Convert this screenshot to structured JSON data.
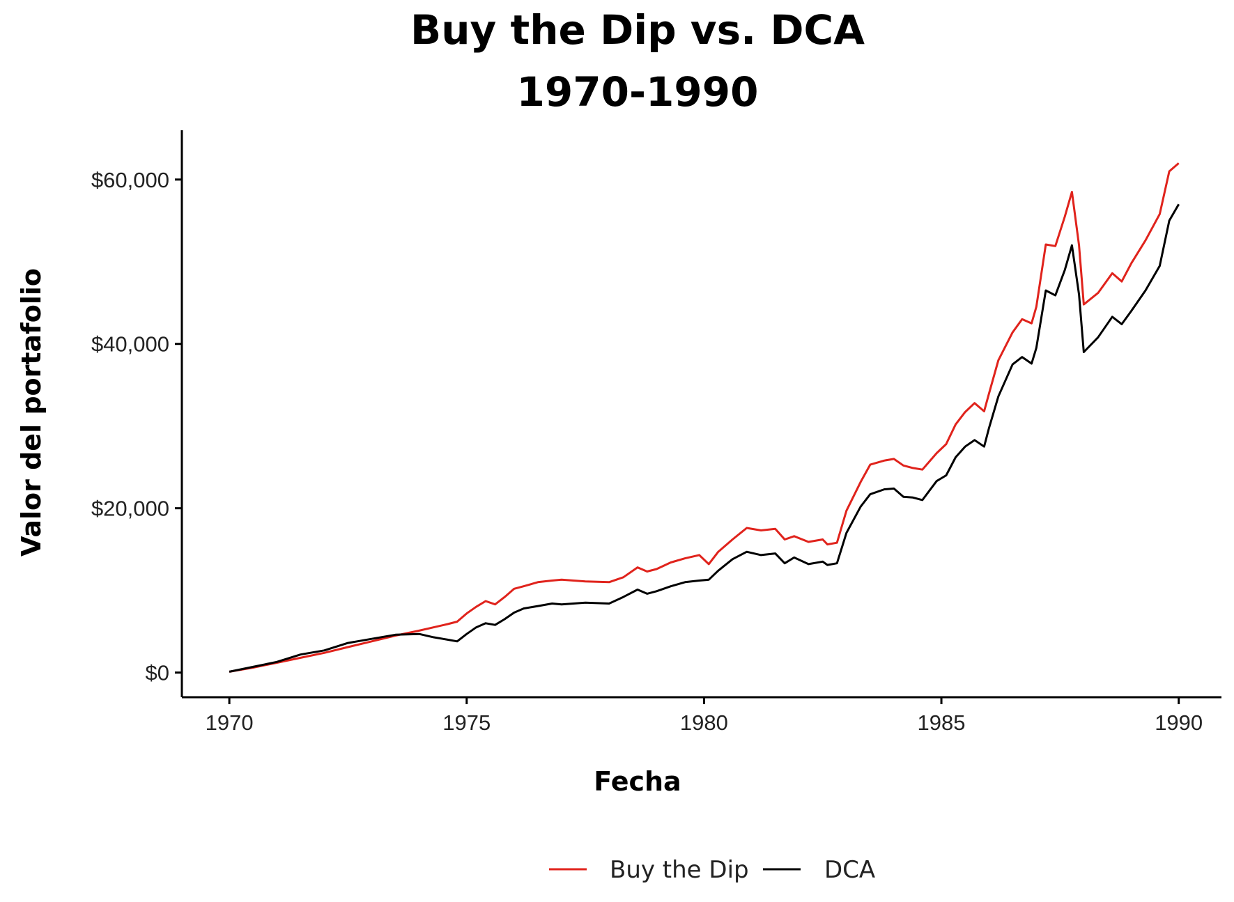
{
  "chart_data": {
    "type": "line",
    "title": "Buy the Dip vs. DCA",
    "subtitle": "1970-1990",
    "xlabel": "Fecha",
    "ylabel": "Valor del portafolio",
    "xlim": [
      1969.0,
      1990.9
    ],
    "ylim": [
      -3000,
      66000
    ],
    "x_ticks": [
      1970,
      1975,
      1980,
      1985,
      1990
    ],
    "x_tick_labels": [
      "1970",
      "1975",
      "1980",
      "1985",
      "1990"
    ],
    "y_ticks": [
      0,
      20000,
      40000,
      60000
    ],
    "y_tick_labels": [
      "$0",
      "$20,000",
      "$40,000",
      "$60,000"
    ],
    "grid": false,
    "legend_position": "bottom",
    "series": [
      {
        "name": "Buy the Dip",
        "color": "#e0231c",
        "x": [
          1970.0,
          1970.5,
          1971.0,
          1971.5,
          1972.0,
          1972.5,
          1973.0,
          1973.5,
          1974.0,
          1974.3,
          1974.6,
          1974.8,
          1975.0,
          1975.2,
          1975.4,
          1975.6,
          1975.8,
          1976.0,
          1976.2,
          1976.5,
          1976.8,
          1977.0,
          1977.5,
          1978.0,
          1978.3,
          1978.6,
          1978.8,
          1979.0,
          1979.3,
          1979.6,
          1979.9,
          1980.1,
          1980.3,
          1980.6,
          1980.9,
          1981.2,
          1981.5,
          1981.7,
          1981.9,
          1982.2,
          1982.5,
          1982.6,
          1982.8,
          1983.0,
          1983.3,
          1983.5,
          1983.8,
          1984.0,
          1984.2,
          1984.4,
          1984.6,
          1984.9,
          1985.1,
          1985.3,
          1985.5,
          1985.7,
          1985.9,
          1986.0,
          1986.2,
          1986.5,
          1986.7,
          1986.9,
          1987.0,
          1987.2,
          1987.4,
          1987.6,
          1987.75,
          1987.9,
          1988.0,
          1988.3,
          1988.6,
          1988.8,
          1989.0,
          1989.3,
          1989.6,
          1989.8,
          1990.0
        ],
        "y": [
          100,
          600,
          1200,
          1800,
          2400,
          3100,
          3800,
          4500,
          5100,
          5500,
          5900,
          6200,
          7200,
          8000,
          8700,
          8300,
          9200,
          10200,
          10500,
          11000,
          11200,
          11300,
          11100,
          11000,
          11600,
          12800,
          12300,
          12600,
          13400,
          13900,
          14300,
          13200,
          14700,
          16200,
          17600,
          17300,
          17500,
          16200,
          16600,
          15900,
          16200,
          15600,
          15800,
          19700,
          23200,
          25300,
          25800,
          26000,
          25200,
          24900,
          24700,
          26700,
          27800,
          30200,
          31700,
          32800,
          31800,
          33900,
          38000,
          41400,
          43000,
          42500,
          44500,
          52100,
          51900,
          55500,
          58500,
          52000,
          44800,
          46200,
          48600,
          47600,
          49800,
          52600,
          55800,
          61000,
          62000
        ]
      },
      {
        "name": "DCA",
        "color": "#000000",
        "x": [
          1970.0,
          1970.5,
          1971.0,
          1971.5,
          1972.0,
          1972.5,
          1973.0,
          1973.5,
          1974.0,
          1974.3,
          1974.6,
          1974.8,
          1975.0,
          1975.2,
          1975.4,
          1975.6,
          1975.8,
          1976.0,
          1976.2,
          1976.5,
          1976.8,
          1977.0,
          1977.5,
          1978.0,
          1978.3,
          1978.6,
          1978.8,
          1979.0,
          1979.3,
          1979.6,
          1979.9,
          1980.1,
          1980.3,
          1980.6,
          1980.9,
          1981.2,
          1981.5,
          1981.7,
          1981.9,
          1982.2,
          1982.5,
          1982.6,
          1982.8,
          1983.0,
          1983.3,
          1983.5,
          1983.8,
          1984.0,
          1984.2,
          1984.4,
          1984.6,
          1984.9,
          1985.1,
          1985.3,
          1985.5,
          1985.7,
          1985.9,
          1986.0,
          1986.2,
          1986.5,
          1986.7,
          1986.9,
          1987.0,
          1987.2,
          1987.4,
          1987.6,
          1987.75,
          1987.9,
          1988.0,
          1988.3,
          1988.6,
          1988.8,
          1989.0,
          1989.3,
          1989.6,
          1989.8,
          1990.0
        ],
        "y": [
          100,
          700,
          1300,
          2200,
          2700,
          3600,
          4100,
          4600,
          4700,
          4300,
          4000,
          3800,
          4700,
          5500,
          6000,
          5800,
          6500,
          7300,
          7800,
          8100,
          8400,
          8300,
          8500,
          8400,
          9200,
          10100,
          9600,
          9900,
          10500,
          11000,
          11200,
          11300,
          12400,
          13800,
          14700,
          14300,
          14500,
          13300,
          14000,
          13200,
          13500,
          13100,
          13300,
          17000,
          20200,
          21700,
          22300,
          22400,
          21400,
          21300,
          21000,
          23300,
          24000,
          26200,
          27500,
          28300,
          27500,
          29700,
          33600,
          37500,
          38400,
          37600,
          39500,
          46500,
          45900,
          49000,
          52000,
          46000,
          39000,
          40800,
          43300,
          42400,
          44000,
          46500,
          49500,
          55000,
          57000
        ]
      }
    ]
  }
}
